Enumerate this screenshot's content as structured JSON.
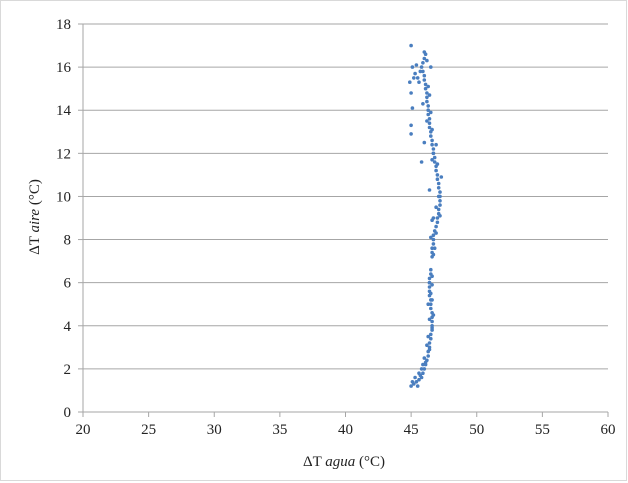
{
  "chart_data": {
    "type": "scatter",
    "title": "",
    "xlabel": {
      "prefix": "ΔT ",
      "italic": "agua",
      "suffix": " (°C)"
    },
    "ylabel": {
      "prefix": "ΔT ",
      "italic": "aire",
      "suffix": " (°C)"
    },
    "xlim": [
      20,
      60
    ],
    "ylim": [
      0,
      18
    ],
    "xticks": [
      20,
      25,
      30,
      35,
      40,
      45,
      50,
      55,
      60
    ],
    "yticks": [
      0,
      2,
      4,
      6,
      8,
      10,
      12,
      14,
      16,
      18
    ],
    "grid": {
      "horizontal": true,
      "vertical": false
    },
    "legend": "none",
    "marker_color": "#4a7ebf",
    "points": [
      [
        45.0,
        1.2
      ],
      [
        45.2,
        1.3
      ],
      [
        45.4,
        1.4
      ],
      [
        45.6,
        1.5
      ],
      [
        45.8,
        1.6
      ],
      [
        45.9,
        1.8
      ],
      [
        46.0,
        2.0
      ],
      [
        46.1,
        2.2
      ],
      [
        46.2,
        2.4
      ],
      [
        46.3,
        2.6
      ],
      [
        46.3,
        2.8
      ],
      [
        46.4,
        3.0
      ],
      [
        46.4,
        3.2
      ],
      [
        46.5,
        3.4
      ],
      [
        46.5,
        3.6
      ],
      [
        46.6,
        3.8
      ],
      [
        46.6,
        4.0
      ],
      [
        46.6,
        4.2
      ],
      [
        46.6,
        4.4
      ],
      [
        46.6,
        4.6
      ],
      [
        46.5,
        4.8
      ],
      [
        46.5,
        5.0
      ],
      [
        46.5,
        5.2
      ],
      [
        46.4,
        5.4
      ],
      [
        46.4,
        5.6
      ],
      [
        46.4,
        5.8
      ],
      [
        46.4,
        6.0
      ],
      [
        46.4,
        6.2
      ],
      [
        46.5,
        6.4
      ],
      [
        46.5,
        6.6
      ],
      [
        46.6,
        7.2
      ],
      [
        46.6,
        7.4
      ],
      [
        46.6,
        7.6
      ],
      [
        46.7,
        7.8
      ],
      [
        46.7,
        8.0
      ],
      [
        46.7,
        8.2
      ],
      [
        46.8,
        8.4
      ],
      [
        46.9,
        8.6
      ],
      [
        47.0,
        8.8
      ],
      [
        47.0,
        9.0
      ],
      [
        47.1,
        9.2
      ],
      [
        47.1,
        9.4
      ],
      [
        47.2,
        9.6
      ],
      [
        47.2,
        9.8
      ],
      [
        47.2,
        10.0
      ],
      [
        47.2,
        10.2
      ],
      [
        47.1,
        10.4
      ],
      [
        47.1,
        10.6
      ],
      [
        47.0,
        10.8
      ],
      [
        47.0,
        11.0
      ],
      [
        46.9,
        11.2
      ],
      [
        46.9,
        11.4
      ],
      [
        46.8,
        11.6
      ],
      [
        46.8,
        11.8
      ],
      [
        46.7,
        12.0
      ],
      [
        46.7,
        12.2
      ],
      [
        46.6,
        12.4
      ],
      [
        46.6,
        12.6
      ],
      [
        46.5,
        12.8
      ],
      [
        46.5,
        13.0
      ],
      [
        46.4,
        13.2
      ],
      [
        46.4,
        13.4
      ],
      [
        46.4,
        13.6
      ],
      [
        46.3,
        13.8
      ],
      [
        46.3,
        14.0
      ],
      [
        46.3,
        14.2
      ],
      [
        46.2,
        14.4
      ],
      [
        46.2,
        14.6
      ],
      [
        46.2,
        14.8
      ],
      [
        46.1,
        15.0
      ],
      [
        46.1,
        15.2
      ],
      [
        46.0,
        15.4
      ],
      [
        46.0,
        15.6
      ],
      [
        45.9,
        15.8
      ],
      [
        45.8,
        16.0
      ],
      [
        45.9,
        16.2
      ],
      [
        46.0,
        16.4
      ],
      [
        46.1,
        16.6
      ],
      [
        45.0,
        17.0
      ],
      [
        45.1,
        16.0
      ],
      [
        45.3,
        15.7
      ],
      [
        45.5,
        15.5
      ],
      [
        45.2,
        15.5
      ],
      [
        45.7,
        15.8
      ],
      [
        45.4,
        16.1
      ],
      [
        45.6,
        15.3
      ],
      [
        44.9,
        15.3
      ],
      [
        45.0,
        14.8
      ],
      [
        45.1,
        14.1
      ],
      [
        45.0,
        13.3
      ],
      [
        45.0,
        12.9
      ],
      [
        46.0,
        12.5
      ],
      [
        45.8,
        11.6
      ],
      [
        46.6,
        11.7
      ],
      [
        46.7,
        12.0
      ],
      [
        46.4,
        10.3
      ],
      [
        46.9,
        9.5
      ],
      [
        46.7,
        9.0
      ],
      [
        46.6,
        8.9
      ],
      [
        46.5,
        8.1
      ],
      [
        46.7,
        7.3
      ],
      [
        46.6,
        6.3
      ],
      [
        46.4,
        6.0
      ],
      [
        46.5,
        5.5
      ],
      [
        46.3,
        5.0
      ],
      [
        46.4,
        4.3
      ],
      [
        46.3,
        3.5
      ],
      [
        46.2,
        3.1
      ],
      [
        46.0,
        2.5
      ],
      [
        45.9,
        2.2
      ],
      [
        45.8,
        2.0
      ],
      [
        45.6,
        1.8
      ],
      [
        45.3,
        1.6
      ],
      [
        45.1,
        1.4
      ],
      [
        46.2,
        13.5
      ],
      [
        46.5,
        13.9
      ],
      [
        46.4,
        14.7
      ],
      [
        46.3,
        15.1
      ],
      [
        46.5,
        16.0
      ],
      [
        46.2,
        16.3
      ],
      [
        46.0,
        16.7
      ],
      [
        45.9,
        14.3
      ],
      [
        46.6,
        13.1
      ],
      [
        46.9,
        12.4
      ],
      [
        47.0,
        11.5
      ],
      [
        47.3,
        10.9
      ],
      [
        47.1,
        10.0
      ],
      [
        47.2,
        9.1
      ],
      [
        46.9,
        8.3
      ],
      [
        46.8,
        7.6
      ],
      [
        46.6,
        5.9
      ],
      [
        46.6,
        5.2
      ],
      [
        46.7,
        4.5
      ],
      [
        46.6,
        3.9
      ],
      [
        46.4,
        2.9
      ],
      [
        46.1,
        2.3
      ],
      [
        45.7,
        1.7
      ],
      [
        45.5,
        1.2
      ]
    ]
  }
}
